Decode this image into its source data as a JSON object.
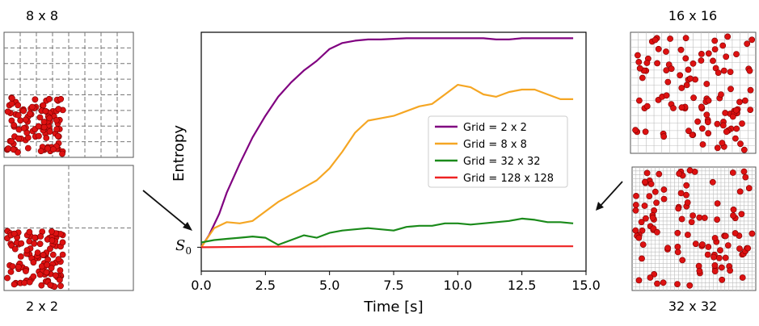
{
  "panels": {
    "top_left": {
      "title": "8 x 8",
      "grid_n": 8
    },
    "bottom_left": {
      "title": "2 x 2",
      "grid_n": 2
    },
    "top_right": {
      "title": "16 x 16",
      "grid_n": 16
    },
    "bottom_right": {
      "title": "32 x 32",
      "grid_n": 32
    }
  },
  "colors": {
    "particle": "#dd1111",
    "particle_edge": "#7a0000",
    "coarse_grid": "#777777",
    "fine_grid": "#bdbdbd",
    "arrow": "#111111"
  },
  "chart_data": {
    "type": "line",
    "xlabel": "Time [s]",
    "ylabel": "Entropy",
    "xlim": [
      0,
      15
    ],
    "ylim": [
      0,
      1
    ],
    "xticks": [
      0.0,
      2.5,
      5.0,
      7.5,
      10.0,
      12.5,
      15.0
    ],
    "xtick_labels": [
      "0.0",
      "2.5",
      "5.0",
      "7.5",
      "10.0",
      "12.5",
      "15.0"
    ],
    "y_annotation": {
      "label": "S0",
      "base": "S",
      "sub": "0",
      "value": 0.1
    },
    "legend_position": "center-right",
    "series": [
      {
        "name": "Grid = 2 x 2",
        "color": "#800080",
        "x": [
          0,
          0.3,
          0.7,
          1,
          1.5,
          2,
          2.5,
          3,
          3.5,
          4,
          4.5,
          5,
          5.5,
          6,
          6.5,
          7,
          8,
          9,
          10,
          11,
          11.5,
          12,
          12.5,
          13,
          14.5
        ],
        "y": [
          0.1,
          0.15,
          0.24,
          0.33,
          0.45,
          0.56,
          0.65,
          0.73,
          0.79,
          0.84,
          0.88,
          0.93,
          0.955,
          0.965,
          0.97,
          0.97,
          0.975,
          0.975,
          0.975,
          0.975,
          0.97,
          0.97,
          0.975,
          0.975,
          0.975
        ]
      },
      {
        "name": "Grid = 8 x 8",
        "color": "#f5a623",
        "x": [
          0,
          0.5,
          1,
          1.5,
          2,
          2.5,
          3,
          3.5,
          4,
          4.5,
          5,
          5.5,
          6,
          6.5,
          7,
          7.5,
          8,
          8.5,
          9,
          9.5,
          10,
          10.5,
          11,
          11.5,
          12,
          12.5,
          13,
          13.5,
          14,
          14.5
        ],
        "y": [
          0.1,
          0.18,
          0.205,
          0.2,
          0.21,
          0.25,
          0.29,
          0.32,
          0.35,
          0.38,
          0.43,
          0.5,
          0.58,
          0.63,
          0.64,
          0.65,
          0.67,
          0.69,
          0.7,
          0.74,
          0.78,
          0.77,
          0.74,
          0.73,
          0.75,
          0.76,
          0.76,
          0.74,
          0.72,
          0.72
        ]
      },
      {
        "name": "Grid = 32 x 32",
        "color": "#1a8a1a",
        "x": [
          0,
          0.5,
          1,
          1.5,
          2,
          2.5,
          3,
          3.5,
          4,
          4.5,
          5,
          5.5,
          6,
          6.5,
          7,
          7.5,
          8,
          8.5,
          9,
          9.5,
          10,
          10.5,
          11,
          11.5,
          12,
          12.5,
          13,
          13.5,
          14,
          14.5
        ],
        "y": [
          0.12,
          0.13,
          0.135,
          0.14,
          0.145,
          0.14,
          0.11,
          0.13,
          0.15,
          0.14,
          0.16,
          0.17,
          0.175,
          0.18,
          0.175,
          0.17,
          0.185,
          0.19,
          0.19,
          0.2,
          0.2,
          0.195,
          0.2,
          0.205,
          0.21,
          0.22,
          0.215,
          0.205,
          0.205,
          0.2
        ]
      },
      {
        "name": "Grid = 128 x 128",
        "color": "#ee2222",
        "x": [
          0,
          2,
          4,
          6,
          8,
          10,
          12,
          14.5
        ],
        "y": [
          0.1,
          0.102,
          0.103,
          0.104,
          0.104,
          0.104,
          0.104,
          0.104
        ]
      }
    ]
  }
}
